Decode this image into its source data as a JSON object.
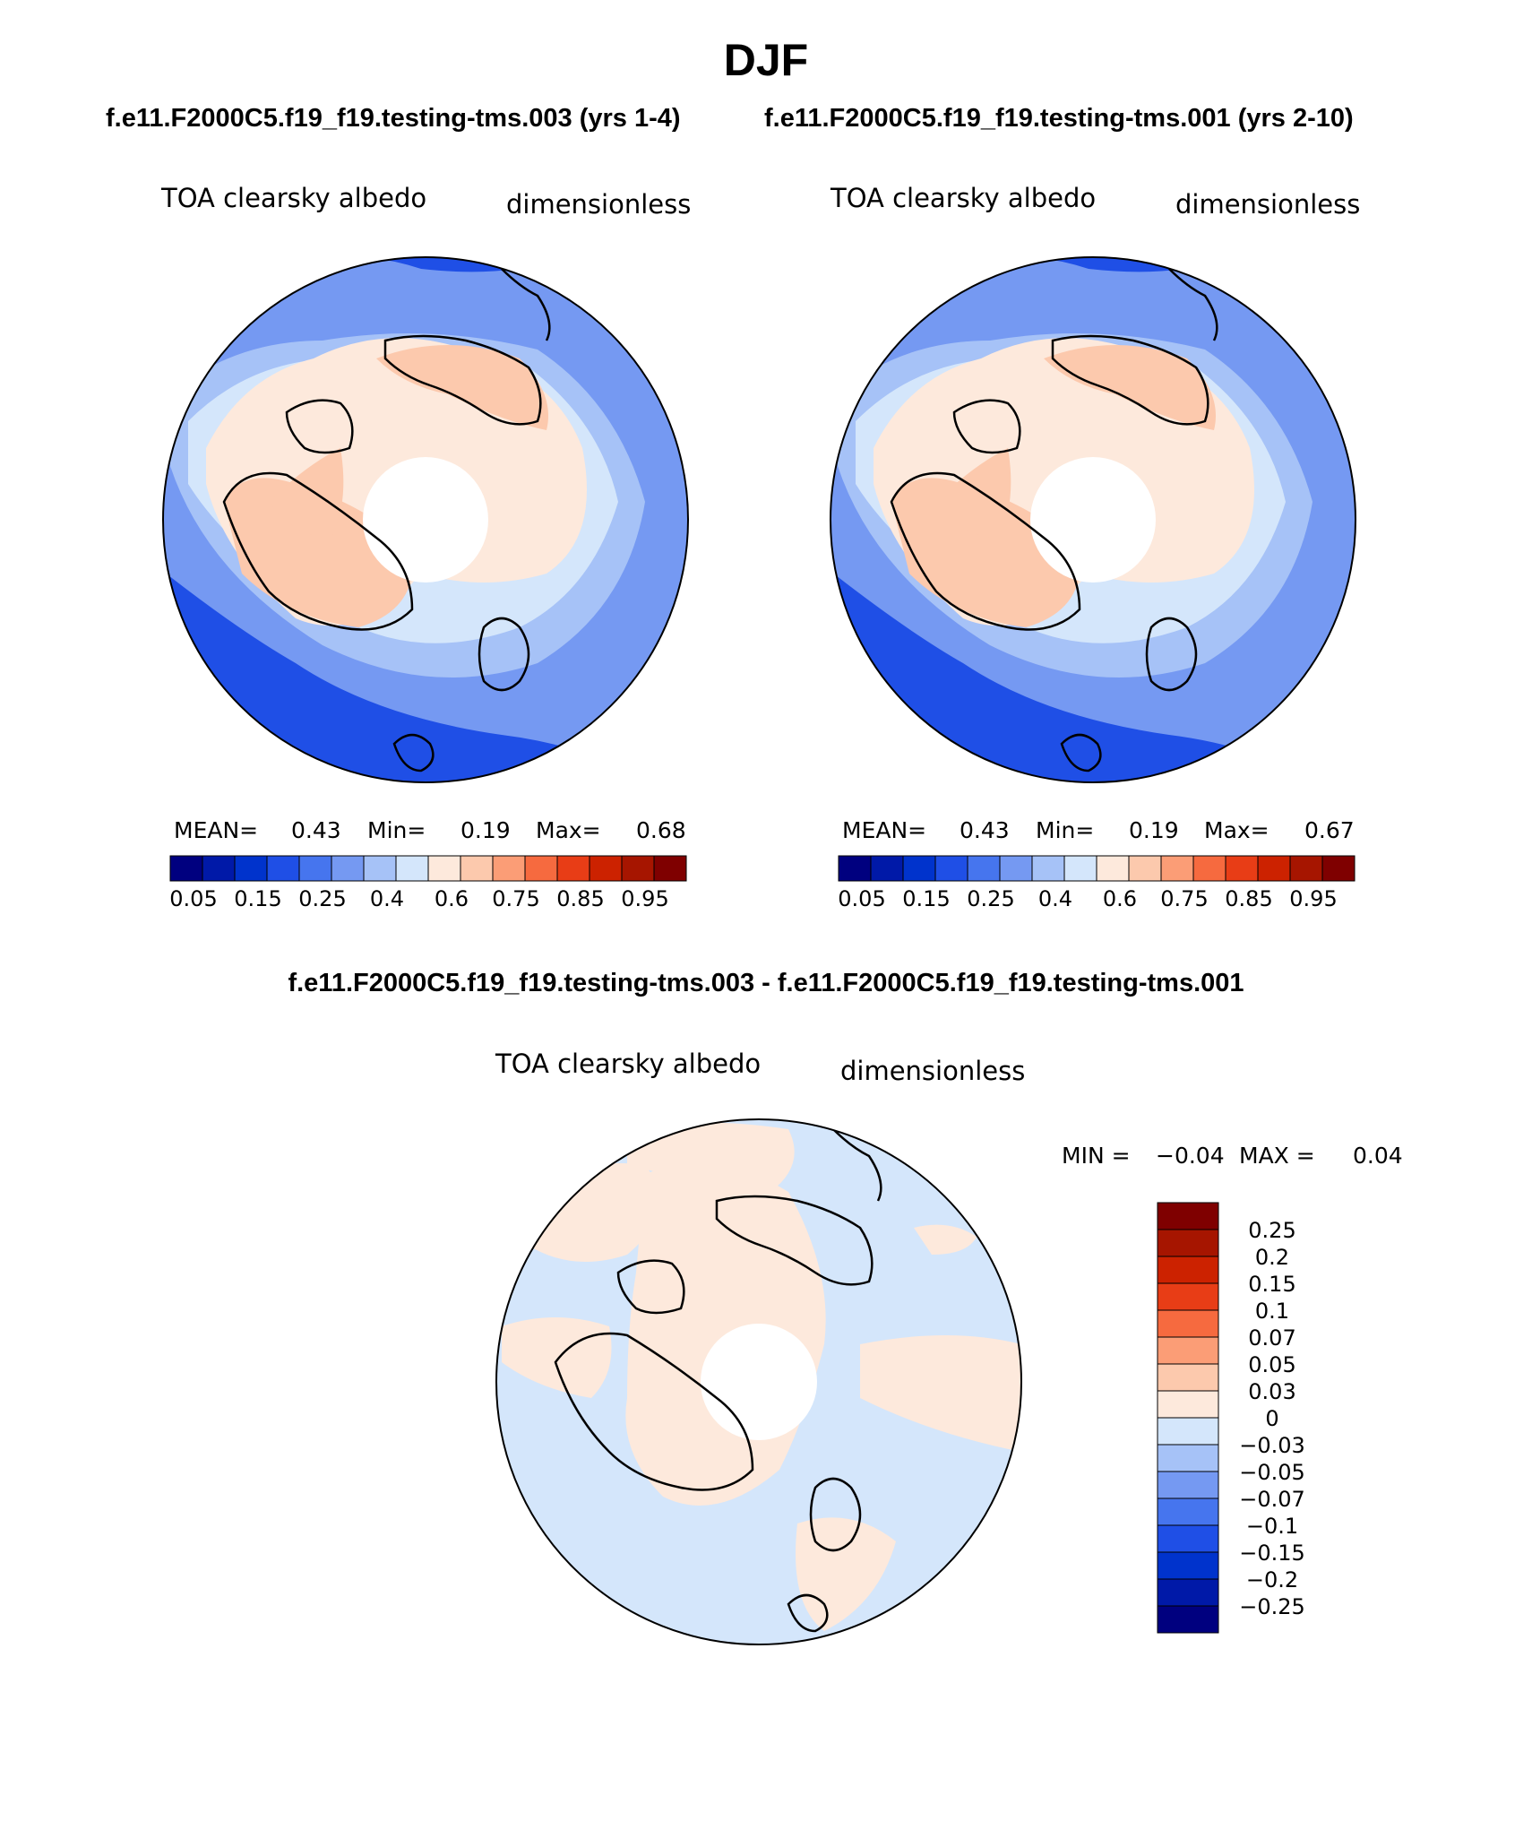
{
  "page": {
    "title": "DJF",
    "case_a_title": "f.e11.F2000C5.f19_f19.testing-tms.003 (yrs 1-4)",
    "case_b_title": "f.e11.F2000C5.f19_f19.testing-tms.001 (yrs 2-10)",
    "diff_title": "f.e11.F2000C5.f19_f19.testing-tms.003 - f.e11.F2000C5.f19_f19.testing-tms.001"
  },
  "panels": [
    {
      "variable": "TOA clearsky albedo",
      "units": "dimensionless",
      "stats": {
        "mean_label": "MEAN=",
        "mean": "0.43",
        "min_label": "Min=",
        "min": "0.19",
        "max_label": "Max=",
        "max": "0.68"
      }
    },
    {
      "variable": "TOA clearsky albedo",
      "units": "dimensionless",
      "stats": {
        "mean_label": "MEAN=",
        "mean": "0.43",
        "min_label": "Min=",
        "min": "0.19",
        "max_label": "Max=",
        "max": "0.67"
      }
    },
    {
      "variable": "TOA clearsky albedo",
      "units": "dimensionless",
      "stats": {
        "min_label": "MIN =",
        "min": "−0.04",
        "max_label": "MAX =",
        "max": "0.04"
      }
    }
  ],
  "colors": {
    "abs_scale": [
      "#00007f",
      "#0019a8",
      "#0033cc",
      "#1f4fe6",
      "#4675ee",
      "#7599f2",
      "#a6c2f7",
      "#d4e6fb",
      "#fde9dc",
      "#fcc9ad",
      "#fb9d76",
      "#f66a3f",
      "#e83d16",
      "#cc2200",
      "#a61500",
      "#7f0000"
    ],
    "diff_scale": [
      "#00007f",
      "#0019a8",
      "#0033cc",
      "#1f4fe6",
      "#4675ee",
      "#7599f2",
      "#a6c2f7",
      "#d4e6fb",
      "#fde9dc",
      "#fcc9ad",
      "#fb9d76",
      "#f66a3f",
      "#e83d16",
      "#cc2200",
      "#a61500",
      "#7f0000"
    ],
    "land_line": "#000000"
  },
  "chart_data": [
    {
      "type": "heatmap",
      "projection": "north polar stereographic",
      "title": "TOA clearsky albedo",
      "units": "dimensionless",
      "case": "f.e11.F2000C5.f19_f19.testing-tms.003 (yrs 1-4)",
      "levels": [
        "0.05",
        "0.15",
        "0.25",
        "0.4",
        "0.6",
        "0.75",
        "0.85",
        "0.95"
      ],
      "mean": 0.43,
      "min": 0.19,
      "max": 0.68
    },
    {
      "type": "heatmap",
      "projection": "north polar stereographic",
      "title": "TOA clearsky albedo",
      "units": "dimensionless",
      "case": "f.e11.F2000C5.f19_f19.testing-tms.001 (yrs 2-10)",
      "levels": [
        "0.05",
        "0.15",
        "0.25",
        "0.4",
        "0.6",
        "0.75",
        "0.85",
        "0.95"
      ],
      "mean": 0.43,
      "min": 0.19,
      "max": 0.67
    },
    {
      "type": "heatmap",
      "projection": "north polar stereographic",
      "title": "TOA clearsky albedo",
      "units": "dimensionless",
      "case": "f.e11.F2000C5.f19_f19.testing-tms.003 - f.e11.F2000C5.f19_f19.testing-tms.001",
      "levels": [
        "0.25",
        "0.2",
        "0.15",
        "0.1",
        "0.07",
        "0.05",
        "0.03",
        "0",
        "−0.03",
        "−0.05",
        "−0.07",
        "−0.1",
        "−0.15",
        "−0.2",
        "−0.25"
      ],
      "min": -0.04,
      "max": 0.04
    }
  ]
}
